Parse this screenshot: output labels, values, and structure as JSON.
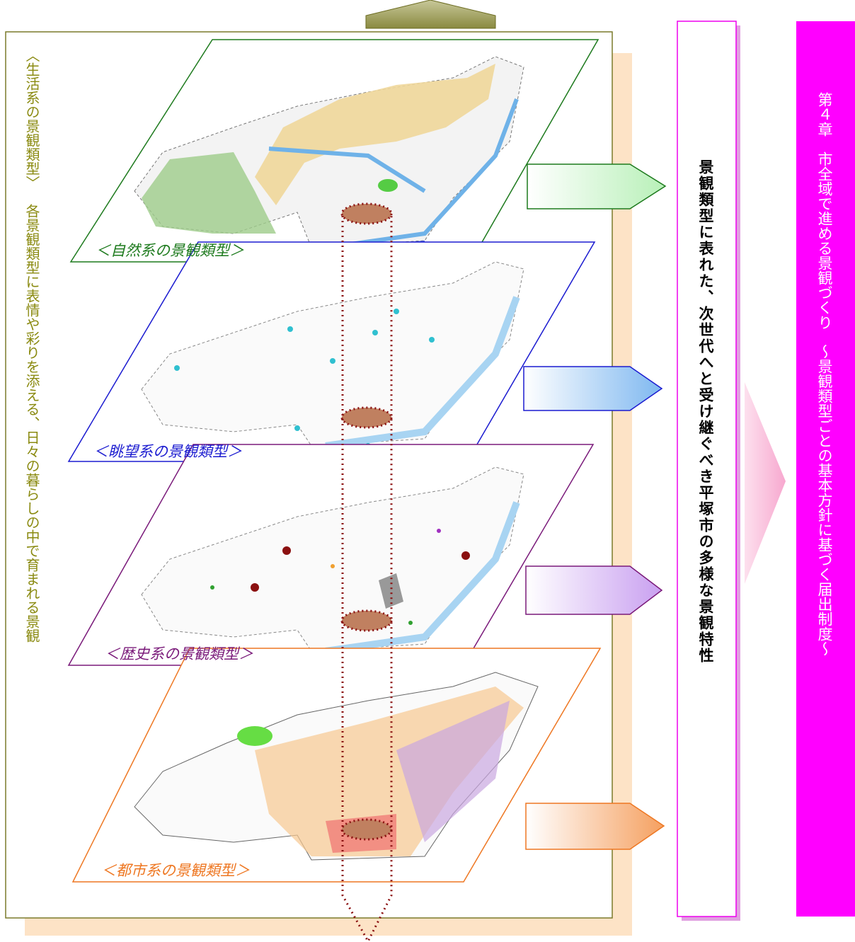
{
  "living_type": {
    "title": "〈生活系の景観類型〉",
    "description": "各景観類型に表情や彩りを添える、日々の暮らしの中で育まれる景観"
  },
  "layers": [
    {
      "label": "＜自然系の景観類型＞"
    },
    {
      "label": "＜眺望系の景観類型＞"
    },
    {
      "label": "＜歴史系の景観類型＞"
    },
    {
      "label": "＜都市系の景観類型＞"
    }
  ],
  "characteristics": {
    "text": "景観類型に表れた、次世代へと受け継ぐべき平塚市の多様な景観特性"
  },
  "chapter": {
    "title": "第４章　市全域で進める景観づくり",
    "subtitle": "～景観類型ごとの基本方針に基づく届出制度～"
  }
}
